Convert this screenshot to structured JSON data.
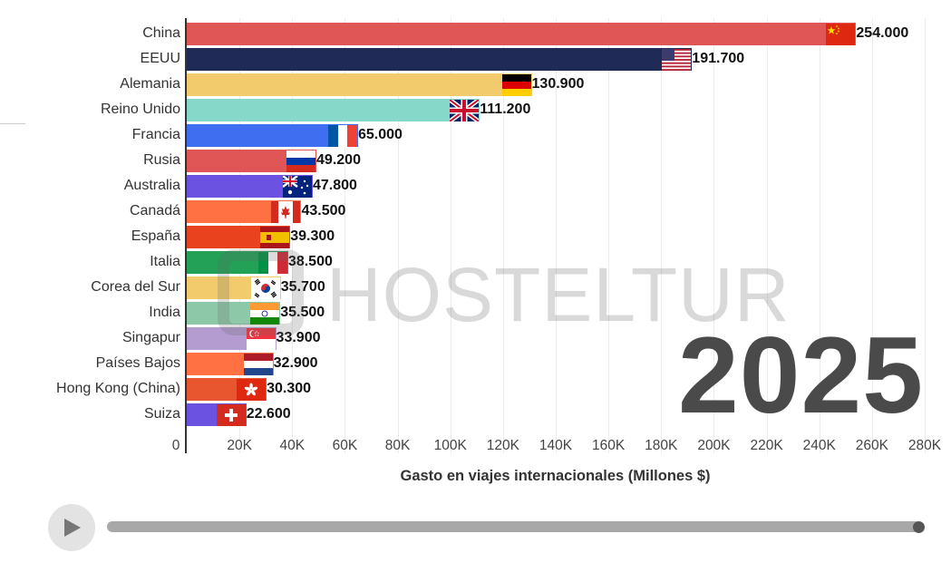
{
  "chart_data": {
    "type": "bar",
    "orientation": "horizontal",
    "title": "",
    "xlabel": "Gasto en viajes internacionales (Millones $)",
    "ylabel": "",
    "year": "2025",
    "xlim": [
      0,
      280000
    ],
    "xticks": [
      "0",
      "20K",
      "40K",
      "60K",
      "80K",
      "100K",
      "120K",
      "140K",
      "160K",
      "180K",
      "200K",
      "220K",
      "240K",
      "260K",
      "280K"
    ],
    "grid": true,
    "categories": [
      "China",
      "EEUU",
      "Alemania",
      "Reino Unido",
      "Francia",
      "Rusia",
      "Australia",
      "Canadá",
      "España",
      "Italia",
      "Corea del Sur",
      "India",
      "Singapur",
      "Países Bajos",
      "Hong Kong (China)",
      "Suiza"
    ],
    "values": [
      254000,
      191700,
      130900,
      111200,
      65000,
      49200,
      47800,
      43500,
      39300,
      38500,
      35700,
      35500,
      33900,
      32900,
      30300,
      22600
    ],
    "value_labels": [
      "254.000",
      "191.700",
      "130.900",
      "111.200",
      "65.000",
      "49.200",
      "47.800",
      "43.500",
      "39.300",
      "38.500",
      "35.700",
      "35.500",
      "33.900",
      "32.900",
      "30.300",
      "22.600"
    ],
    "colors": [
      "#e05555",
      "#1f2a57",
      "#f2cc6c",
      "#86d8c8",
      "#3f6ff0",
      "#e05555",
      "#6b52e0",
      "#ff7043",
      "#e8421e",
      "#23a157",
      "#f2cc6c",
      "#8dc9a8",
      "#b49bd0",
      "#ff7043",
      "#e8562f",
      "#6b52e0"
    ],
    "flags": [
      "china-flag-icon",
      "usa-flag-icon",
      "germany-flag-icon",
      "uk-flag-icon",
      "france-flag-icon",
      "russia-flag-icon",
      "australia-flag-icon",
      "canada-flag-icon",
      "spain-flag-icon",
      "italy-flag-icon",
      "south-korea-flag-icon",
      "india-flag-icon",
      "singapore-flag-icon",
      "netherlands-flag-icon",
      "hong-kong-flag-icon",
      "switzerland-flag-icon"
    ]
  },
  "watermark": "HOSTELTUR",
  "controls": {
    "play_icon": "play-icon",
    "progress": 1.0
  }
}
